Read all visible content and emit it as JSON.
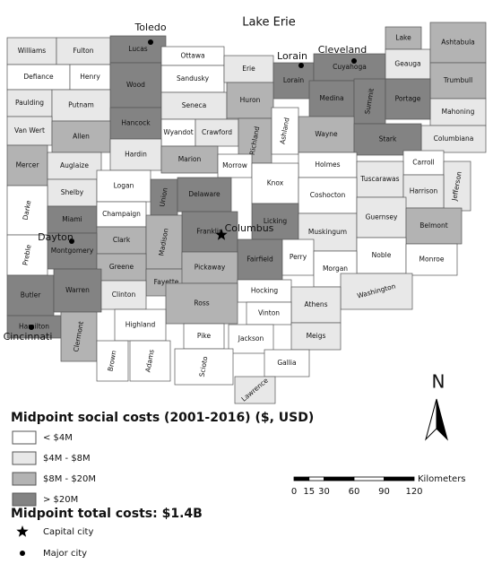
{
  "map": {
    "water_label": "Lake Erie",
    "counties": [
      {
        "name": "Williams",
        "fill": "#e8e8e8"
      },
      {
        "name": "Fulton",
        "fill": "#e8e8e8"
      },
      {
        "name": "Lucas",
        "fill": "#838383"
      },
      {
        "name": "Defiance",
        "fill": "#ffffff"
      },
      {
        "name": "Henry",
        "fill": "#ffffff"
      },
      {
        "name": "Wood",
        "fill": "#838383"
      },
      {
        "name": "Ottawa",
        "fill": "#ffffff"
      },
      {
        "name": "Sandusky",
        "fill": "#ffffff"
      },
      {
        "name": "Erie",
        "fill": "#e8e8e8"
      },
      {
        "name": "Lorain",
        "fill": "#838383"
      },
      {
        "name": "Cuyahoga",
        "fill": "#838383"
      },
      {
        "name": "Lake",
        "fill": "#b3b3b3"
      },
      {
        "name": "Geauga",
        "fill": "#e8e8e8"
      },
      {
        "name": "Ashtabula",
        "fill": "#b3b3b3"
      },
      {
        "name": "Trumbull",
        "fill": "#b3b3b3"
      },
      {
        "name": "Mahoning",
        "fill": "#e8e8e8"
      },
      {
        "name": "Columbiana",
        "fill": "#e8e8e8"
      },
      {
        "name": "Paulding",
        "fill": "#e8e8e8"
      },
      {
        "name": "Putnam",
        "fill": "#e8e8e8"
      },
      {
        "name": "Hancock",
        "fill": "#838383"
      },
      {
        "name": "Seneca",
        "fill": "#e8e8e8"
      },
      {
        "name": "Huron",
        "fill": "#b3b3b3"
      },
      {
        "name": "Medina",
        "fill": "#838383"
      },
      {
        "name": "Summit",
        "fill": "#838383"
      },
      {
        "name": "Portage",
        "fill": "#838383"
      },
      {
        "name": "Van Wert",
        "fill": "#e8e8e8"
      },
      {
        "name": "Allen",
        "fill": "#b3b3b3"
      },
      {
        "name": "Wyandot",
        "fill": "#ffffff"
      },
      {
        "name": "Crawford",
        "fill": "#e8e8e8"
      },
      {
        "name": "Richland",
        "fill": "#b3b3b3"
      },
      {
        "name": "Ashland",
        "fill": "#ffffff"
      },
      {
        "name": "Wayne",
        "fill": "#b3b3b3"
      },
      {
        "name": "Stark",
        "fill": "#838383"
      },
      {
        "name": "Mercer",
        "fill": "#b3b3b3"
      },
      {
        "name": "Auglaize",
        "fill": "#e8e8e8"
      },
      {
        "name": "Hardin",
        "fill": "#e8e8e8"
      },
      {
        "name": "Marion",
        "fill": "#b3b3b3"
      },
      {
        "name": "Morrow",
        "fill": "#ffffff"
      },
      {
        "name": "Holmes",
        "fill": "#ffffff"
      },
      {
        "name": "Carroll",
        "fill": "#ffffff"
      },
      {
        "name": "Tuscarawas",
        "fill": "#e8e8e8"
      },
      {
        "name": "Jefferson",
        "fill": "#e8e8e8"
      },
      {
        "name": "Shelby",
        "fill": "#e8e8e8"
      },
      {
        "name": "Logan",
        "fill": "#ffffff"
      },
      {
        "name": "Union",
        "fill": "#838383"
      },
      {
        "name": "Delaware",
        "fill": "#838383"
      },
      {
        "name": "Knox",
        "fill": "#ffffff"
      },
      {
        "name": "Coshocton",
        "fill": "#ffffff"
      },
      {
        "name": "Harrison",
        "fill": "#e8e8e8"
      },
      {
        "name": "Darke",
        "fill": "#ffffff"
      },
      {
        "name": "Miami",
        "fill": "#838383"
      },
      {
        "name": "Champaign",
        "fill": "#ffffff"
      },
      {
        "name": "Licking",
        "fill": "#838383"
      },
      {
        "name": "Franklin",
        "fill": "#838383"
      },
      {
        "name": "Muskingum",
        "fill": "#e8e8e8"
      },
      {
        "name": "Guernsey",
        "fill": "#e8e8e8"
      },
      {
        "name": "Belmont",
        "fill": "#b3b3b3"
      },
      {
        "name": "Clark",
        "fill": "#b3b3b3"
      },
      {
        "name": "Madison",
        "fill": "#b3b3b3"
      },
      {
        "name": "Montgomery",
        "fill": "#838383"
      },
      {
        "name": "Preble",
        "fill": "#ffffff"
      },
      {
        "name": "Fairfield",
        "fill": "#838383"
      },
      {
        "name": "Perry",
        "fill": "#ffffff"
      },
      {
        "name": "Noble",
        "fill": "#ffffff"
      },
      {
        "name": "Monroe",
        "fill": "#ffffff"
      },
      {
        "name": "Greene",
        "fill": "#b3b3b3"
      },
      {
        "name": "Fayette",
        "fill": "#b3b3b3"
      },
      {
        "name": "Pickaway",
        "fill": "#b3b3b3"
      },
      {
        "name": "Morgan",
        "fill": "#ffffff"
      },
      {
        "name": "Washington",
        "fill": "#e8e8e8"
      },
      {
        "name": "Hocking",
        "fill": "#ffffff"
      },
      {
        "name": "Butler",
        "fill": "#838383"
      },
      {
        "name": "Warren",
        "fill": "#838383"
      },
      {
        "name": "Clinton",
        "fill": "#e8e8e8"
      },
      {
        "name": "Ross",
        "fill": "#b3b3b3"
      },
      {
        "name": "Athens",
        "fill": "#e8e8e8"
      },
      {
        "name": "Vinton",
        "fill": "#ffffff"
      },
      {
        "name": "Hamilton",
        "fill": "#838383"
      },
      {
        "name": "Clermont",
        "fill": "#b3b3b3"
      },
      {
        "name": "Highland",
        "fill": "#ffffff"
      },
      {
        "name": "Meigs",
        "fill": "#e8e8e8"
      },
      {
        "name": "Pike",
        "fill": "#ffffff"
      },
      {
        "name": "Jackson",
        "fill": "#ffffff"
      },
      {
        "name": "Brown",
        "fill": "#ffffff"
      },
      {
        "name": "Adams",
        "fill": "#ffffff"
      },
      {
        "name": "Scioto",
        "fill": "#ffffff"
      },
      {
        "name": "Gallia",
        "fill": "#ffffff"
      },
      {
        "name": "Lawrence",
        "fill": "#e8e8e8"
      }
    ],
    "cities": [
      {
        "name": "Toledo"
      },
      {
        "name": "Lorain"
      },
      {
        "name": "Cleveland"
      },
      {
        "name": "Columbus"
      },
      {
        "name": "Dayton"
      },
      {
        "name": "Cincinnati"
      }
    ]
  },
  "legend": {
    "title": "Midpoint social costs (2001-2016) ($, USD)",
    "classes": [
      {
        "label": "< $4M",
        "fill": "#ffffff"
      },
      {
        "label": "$4M - $8M",
        "fill": "#e8e8e8"
      },
      {
        "label": "$8M - $20M",
        "fill": "#b3b3b3"
      },
      {
        "label": "> $20M",
        "fill": "#838383"
      }
    ],
    "total": "Midpoint total costs: $1.4B",
    "symbols": [
      {
        "label": "Capital city"
      },
      {
        "label": "Major city"
      }
    ]
  },
  "scale_bar": {
    "unit": "Kilometers",
    "ticks": [
      0,
      15,
      30,
      60,
      90,
      120
    ]
  },
  "north_arrow": "N"
}
